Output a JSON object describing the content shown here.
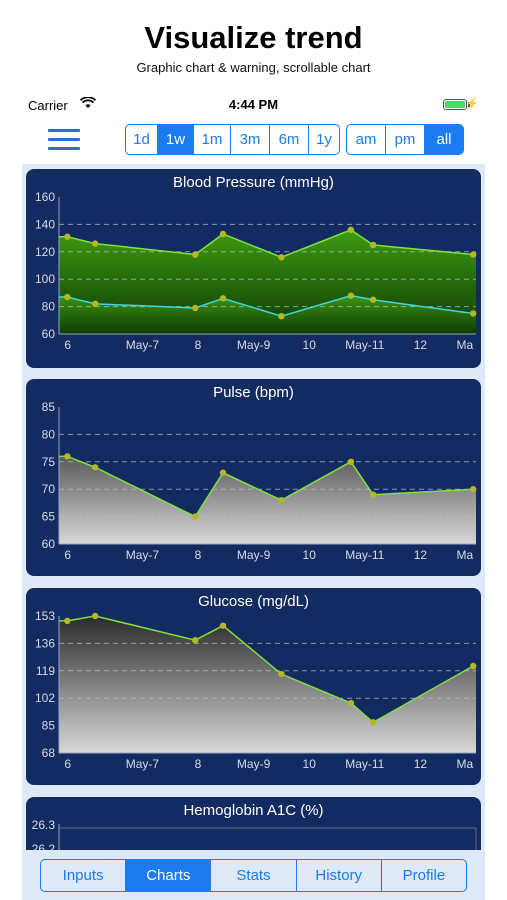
{
  "hero": {
    "title": "Visualize trend",
    "subtitle": "Graphic chart & warning, scrollable chart"
  },
  "status": {
    "carrier": "Carrier",
    "time": "4:44 PM"
  },
  "range_buttons": [
    {
      "label": "1d",
      "selected": false
    },
    {
      "label": "1w",
      "selected": true
    },
    {
      "label": "1m",
      "selected": false
    },
    {
      "label": "3m",
      "selected": false
    },
    {
      "label": "6m",
      "selected": false
    },
    {
      "label": "1y",
      "selected": false
    }
  ],
  "period_buttons": [
    {
      "label": "am",
      "selected": false
    },
    {
      "label": "pm",
      "selected": false
    },
    {
      "label": "all",
      "selected": true
    }
  ],
  "tabs": [
    {
      "label": "Inputs",
      "selected": false
    },
    {
      "label": "Charts",
      "selected": true
    },
    {
      "label": "Stats",
      "selected": false
    },
    {
      "label": "History",
      "selected": false
    },
    {
      "label": "Profile",
      "selected": false
    }
  ],
  "colors": {
    "accent": "#1a7cf0",
    "card_bg": "#142b61",
    "line_green": "#7fe23a",
    "line_cyan": "#43d6e0",
    "marker": "#b5b823"
  },
  "chart_data": [
    {
      "type": "area",
      "title": "Blood Pressure (mmHg)",
      "x_ticks": [
        "6",
        "May-7",
        "8",
        "May-9",
        "10",
        "May-11",
        "12",
        "Ma"
      ],
      "y_ticks": [
        "60",
        "80",
        "100",
        "120",
        "140",
        "160"
      ],
      "ylim": [
        60,
        160
      ],
      "grid_dashed": [
        80,
        100,
        120,
        140
      ],
      "x": [
        5.65,
        6.15,
        7.95,
        8.45,
        9.5,
        10.75,
        11.15,
        12.95
      ],
      "series": [
        {
          "values": [
            131,
            126,
            118,
            133,
            116,
            136,
            125,
            118
          ],
          "color": "#7fe23a"
        },
        {
          "values": [
            87,
            82,
            79,
            86,
            73,
            88,
            85,
            75
          ],
          "color": "#43d6e0"
        }
      ]
    },
    {
      "type": "area",
      "title": "Pulse (bpm)",
      "x_ticks": [
        "6",
        "May-7",
        "8",
        "May-9",
        "10",
        "May-11",
        "12",
        "Ma"
      ],
      "y_ticks": [
        "60",
        "65",
        "70",
        "75",
        "80",
        "85"
      ],
      "ylim": [
        60,
        85
      ],
      "grid_dashed": [
        65,
        70,
        75,
        80
      ],
      "x": [
        5.65,
        6.15,
        7.95,
        8.45,
        9.5,
        10.75,
        11.15,
        12.95
      ],
      "series": [
        {
          "values": [
            76,
            74,
            65,
            73,
            68,
            75,
            69,
            70
          ],
          "color": "#7fe23a"
        }
      ]
    },
    {
      "type": "area",
      "title": "Glucose (mg/dL)",
      "x_ticks": [
        "6",
        "May-7",
        "8",
        "May-9",
        "10",
        "May-11",
        "12",
        "Ma"
      ],
      "y_ticks": [
        "68",
        "85",
        "102",
        "119",
        "136",
        "153"
      ],
      "ylim": [
        68,
        153
      ],
      "grid_dashed": [
        85,
        102,
        119,
        136
      ],
      "x": [
        5.65,
        6.15,
        7.95,
        8.45,
        9.5,
        10.75,
        11.15,
        12.95
      ],
      "series": [
        {
          "values": [
            150,
            153,
            138,
            147,
            117,
            99,
            87,
            122
          ],
          "color": "#7fe23a"
        }
      ]
    },
    {
      "type": "area",
      "title": "Hemoglobin A1C (%)",
      "y_ticks": [
        "26.3",
        "26.2"
      ],
      "series": []
    }
  ]
}
